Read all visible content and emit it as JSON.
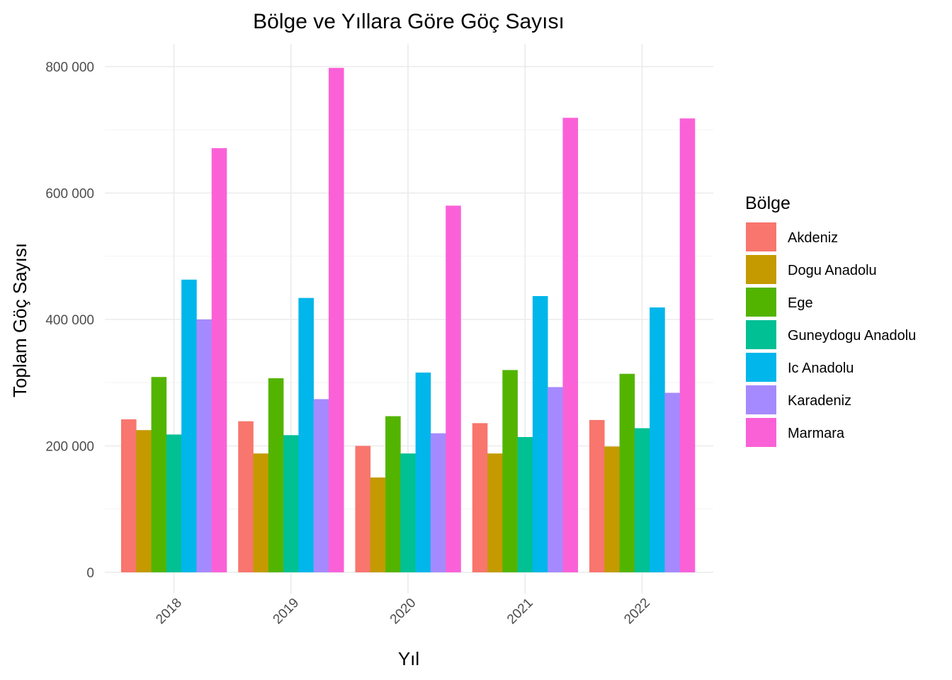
{
  "chart_data": {
    "type": "bar",
    "title": "Bölge ve Yıllara Göre Göç Sayısı",
    "xlabel": "Yıl",
    "ylabel": "Toplam Göç Sayısı",
    "categories": [
      "2018",
      "2019",
      "2020",
      "2021",
      "2022"
    ],
    "ylim": [
      0,
      800000
    ],
    "yticks": [
      0,
      200000,
      400000,
      600000,
      800000
    ],
    "ytick_labels": [
      "0",
      "200 000",
      "400 000",
      "600 000",
      "800 000"
    ],
    "grid": true,
    "legend": {
      "title": "Bölge",
      "position": "right"
    },
    "series": [
      {
        "name": "Akdeniz",
        "color": "#F8766D",
        "values": [
          242000,
          239000,
          200000,
          236000,
          241000
        ]
      },
      {
        "name": "Dogu Anadolu",
        "color": "#C49A00",
        "values": [
          225000,
          188000,
          150000,
          188000,
          199000
        ]
      },
      {
        "name": "Ege",
        "color": "#53B400",
        "values": [
          309000,
          307000,
          247000,
          320000,
          314000
        ]
      },
      {
        "name": "Guneydogu Anadolu",
        "color": "#00C094",
        "values": [
          218000,
          217000,
          188000,
          214000,
          228000
        ]
      },
      {
        "name": "Ic Anadolu",
        "color": "#00B6EB",
        "values": [
          463000,
          434000,
          316000,
          437000,
          419000
        ]
      },
      {
        "name": "Karadeniz",
        "color": "#A58AFF",
        "values": [
          400000,
          274000,
          220000,
          293000,
          284000
        ]
      },
      {
        "name": "Marmara",
        "color": "#FB61D7",
        "values": [
          671000,
          798000,
          580000,
          719000,
          718000
        ]
      }
    ]
  }
}
